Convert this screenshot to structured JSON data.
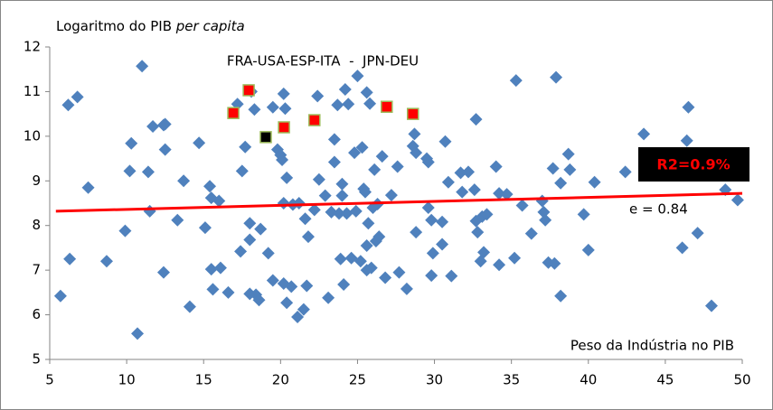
{
  "chart_data": {
    "type": "scatter",
    "title": "Logaritmo do PIB",
    "title_italic": "per capita",
    "annotation": "FRA-USA-ESP-ITA  -  JPN-DEU",
    "r2_label": "R2=0.9%",
    "e_label": "e = 0.84",
    "xlabel": "Peso da Indústria no PIB",
    "xlim": [
      5,
      50
    ],
    "ylim": [
      5,
      12
    ],
    "xticks": [
      5,
      10,
      15,
      20,
      25,
      30,
      35,
      40,
      45,
      50
    ],
    "yticks": [
      5,
      6,
      7,
      8,
      9,
      10,
      11,
      12
    ],
    "grid": false,
    "series": [
      {
        "marker": "diamond",
        "color": "#4f81bd",
        "x": [
          5.7,
          6.2,
          6.3,
          6.8,
          7.5,
          8.7,
          9.9,
          10.2,
          10.3,
          10.7,
          11,
          11.4,
          11.5,
          11.7,
          12.4,
          12.4,
          12.5,
          12.5,
          13.3,
          13.7,
          14.1,
          14.7,
          15.1,
          15.4,
          15.5,
          15.5,
          15.6,
          16,
          16.1,
          16.6,
          17.2,
          17.4,
          17.5,
          17.7,
          18,
          18,
          18,
          18.1,
          18.3,
          18.4,
          18.6,
          18.7,
          19.2,
          19.5,
          19.5,
          19.8,
          20,
          20.2,
          20.1,
          20.2,
          20.2,
          20.3,
          20.4,
          20.4,
          20.7,
          20.8,
          21.1,
          21.2,
          21.5,
          21.6,
          21.7,
          21.8,
          22.2,
          22.4,
          22.5,
          22.9,
          23.1,
          23.3,
          23.5,
          23.5,
          23.7,
          23.8,
          23.9,
          24,
          24,
          24.1,
          24.2,
          24.3,
          24.4,
          24.6,
          24.8,
          24.9,
          25,
          25.2,
          25.3,
          25.4,
          25.5,
          25.6,
          25.6,
          25.6,
          25.7,
          25.8,
          25.9,
          26,
          26.1,
          26.2,
          26.3,
          26.4,
          26.6,
          26.8,
          27.2,
          27.6,
          27.7,
          28.2,
          28.6,
          28.7,
          28.8,
          28.8,
          29.5,
          29.6,
          29.6,
          29.8,
          29.9,
          29.8,
          30.5,
          30.5,
          30.7,
          30.9,
          31.1,
          31.7,
          31.8,
          32.2,
          32.6,
          32.7,
          32.7,
          32.8,
          33,
          33.1,
          33.2,
          33.4,
          34,
          34.2,
          34.2,
          34.7,
          35.2,
          35.3,
          35.7,
          36.3,
          37,
          37.1,
          37.2,
          37.4,
          37.7,
          37.8,
          37.9,
          38.2,
          38.2,
          38.7,
          38.8,
          39.7,
          40,
          40.4,
          42.4,
          43.6,
          46.1,
          46.4,
          46.5,
          47.1,
          48,
          48.9,
          49.7
        ],
        "values": [
          6.42,
          10.7,
          7.25,
          10.88,
          8.85,
          7.2,
          7.88,
          9.22,
          9.84,
          5.58,
          11.57,
          9.2,
          8.32,
          10.22,
          6.95,
          10.25,
          10.27,
          9.7,
          8.12,
          9.0,
          6.18,
          9.85,
          7.95,
          8.88,
          8.62,
          7.02,
          6.57,
          8.55,
          7.05,
          6.5,
          10.72,
          7.42,
          9.22,
          9.76,
          8.05,
          6.47,
          7.68,
          11.0,
          10.6,
          6.45,
          6.33,
          7.92,
          7.38,
          10.65,
          6.77,
          9.7,
          9.58,
          10.95,
          9.47,
          8.5,
          6.7,
          10.62,
          9.07,
          6.27,
          6.63,
          8.47,
          5.95,
          8.5,
          6.12,
          8.15,
          6.65,
          7.75,
          8.35,
          10.9,
          9.03,
          8.67,
          6.38,
          8.3,
          9.93,
          9.42,
          10.7,
          8.27,
          7.25,
          8.93,
          8.67,
          6.68,
          11.05,
          8.27,
          10.72,
          7.27,
          9.63,
          8.32,
          11.35,
          7.2,
          9.75,
          8.82,
          8.75,
          7.0,
          10.98,
          7.55,
          8.05,
          10.73,
          7.05,
          8.4,
          9.25,
          7.65,
          8.48,
          7.75,
          9.55,
          6.83,
          8.68,
          9.32,
          6.95,
          6.58,
          9.78,
          10.05,
          9.63,
          7.85,
          9.5,
          8.4,
          9.42,
          8.12,
          7.38,
          6.88,
          8.08,
          7.58,
          9.88,
          8.97,
          6.87,
          9.18,
          8.75,
          9.2,
          8.8,
          10.38,
          8.1,
          7.85,
          7.2,
          8.2,
          7.4,
          8.25,
          9.32,
          8.72,
          7.12,
          8.7,
          7.27,
          11.25,
          8.45,
          7.82,
          8.55,
          8.3,
          8.12,
          7.17,
          9.28,
          7.15,
          11.32,
          6.42,
          8.95,
          9.6,
          9.25,
          8.25,
          7.45,
          8.97,
          9.2,
          10.05,
          7.5,
          9.9,
          10.65,
          7.83,
          6.2,
          8.8,
          8.57
        ]
      },
      {
        "marker": "square",
        "color": "#ff0000",
        "edge": "#9bbb59",
        "x": [
          16.93,
          17.93,
          20.22,
          22.2,
          26.9,
          28.6
        ],
        "values": [
          10.52,
          11.03,
          10.2,
          10.36,
          10.66,
          10.5
        ]
      },
      {
        "marker": "square",
        "color": "#000000",
        "edge": "#9bbb59",
        "x": [
          19.04
        ],
        "values": [
          9.98
        ]
      }
    ],
    "trendline": {
      "color": "#ff0000",
      "x": [
        5.4,
        50
      ],
      "values": [
        8.32,
        8.72
      ]
    }
  }
}
